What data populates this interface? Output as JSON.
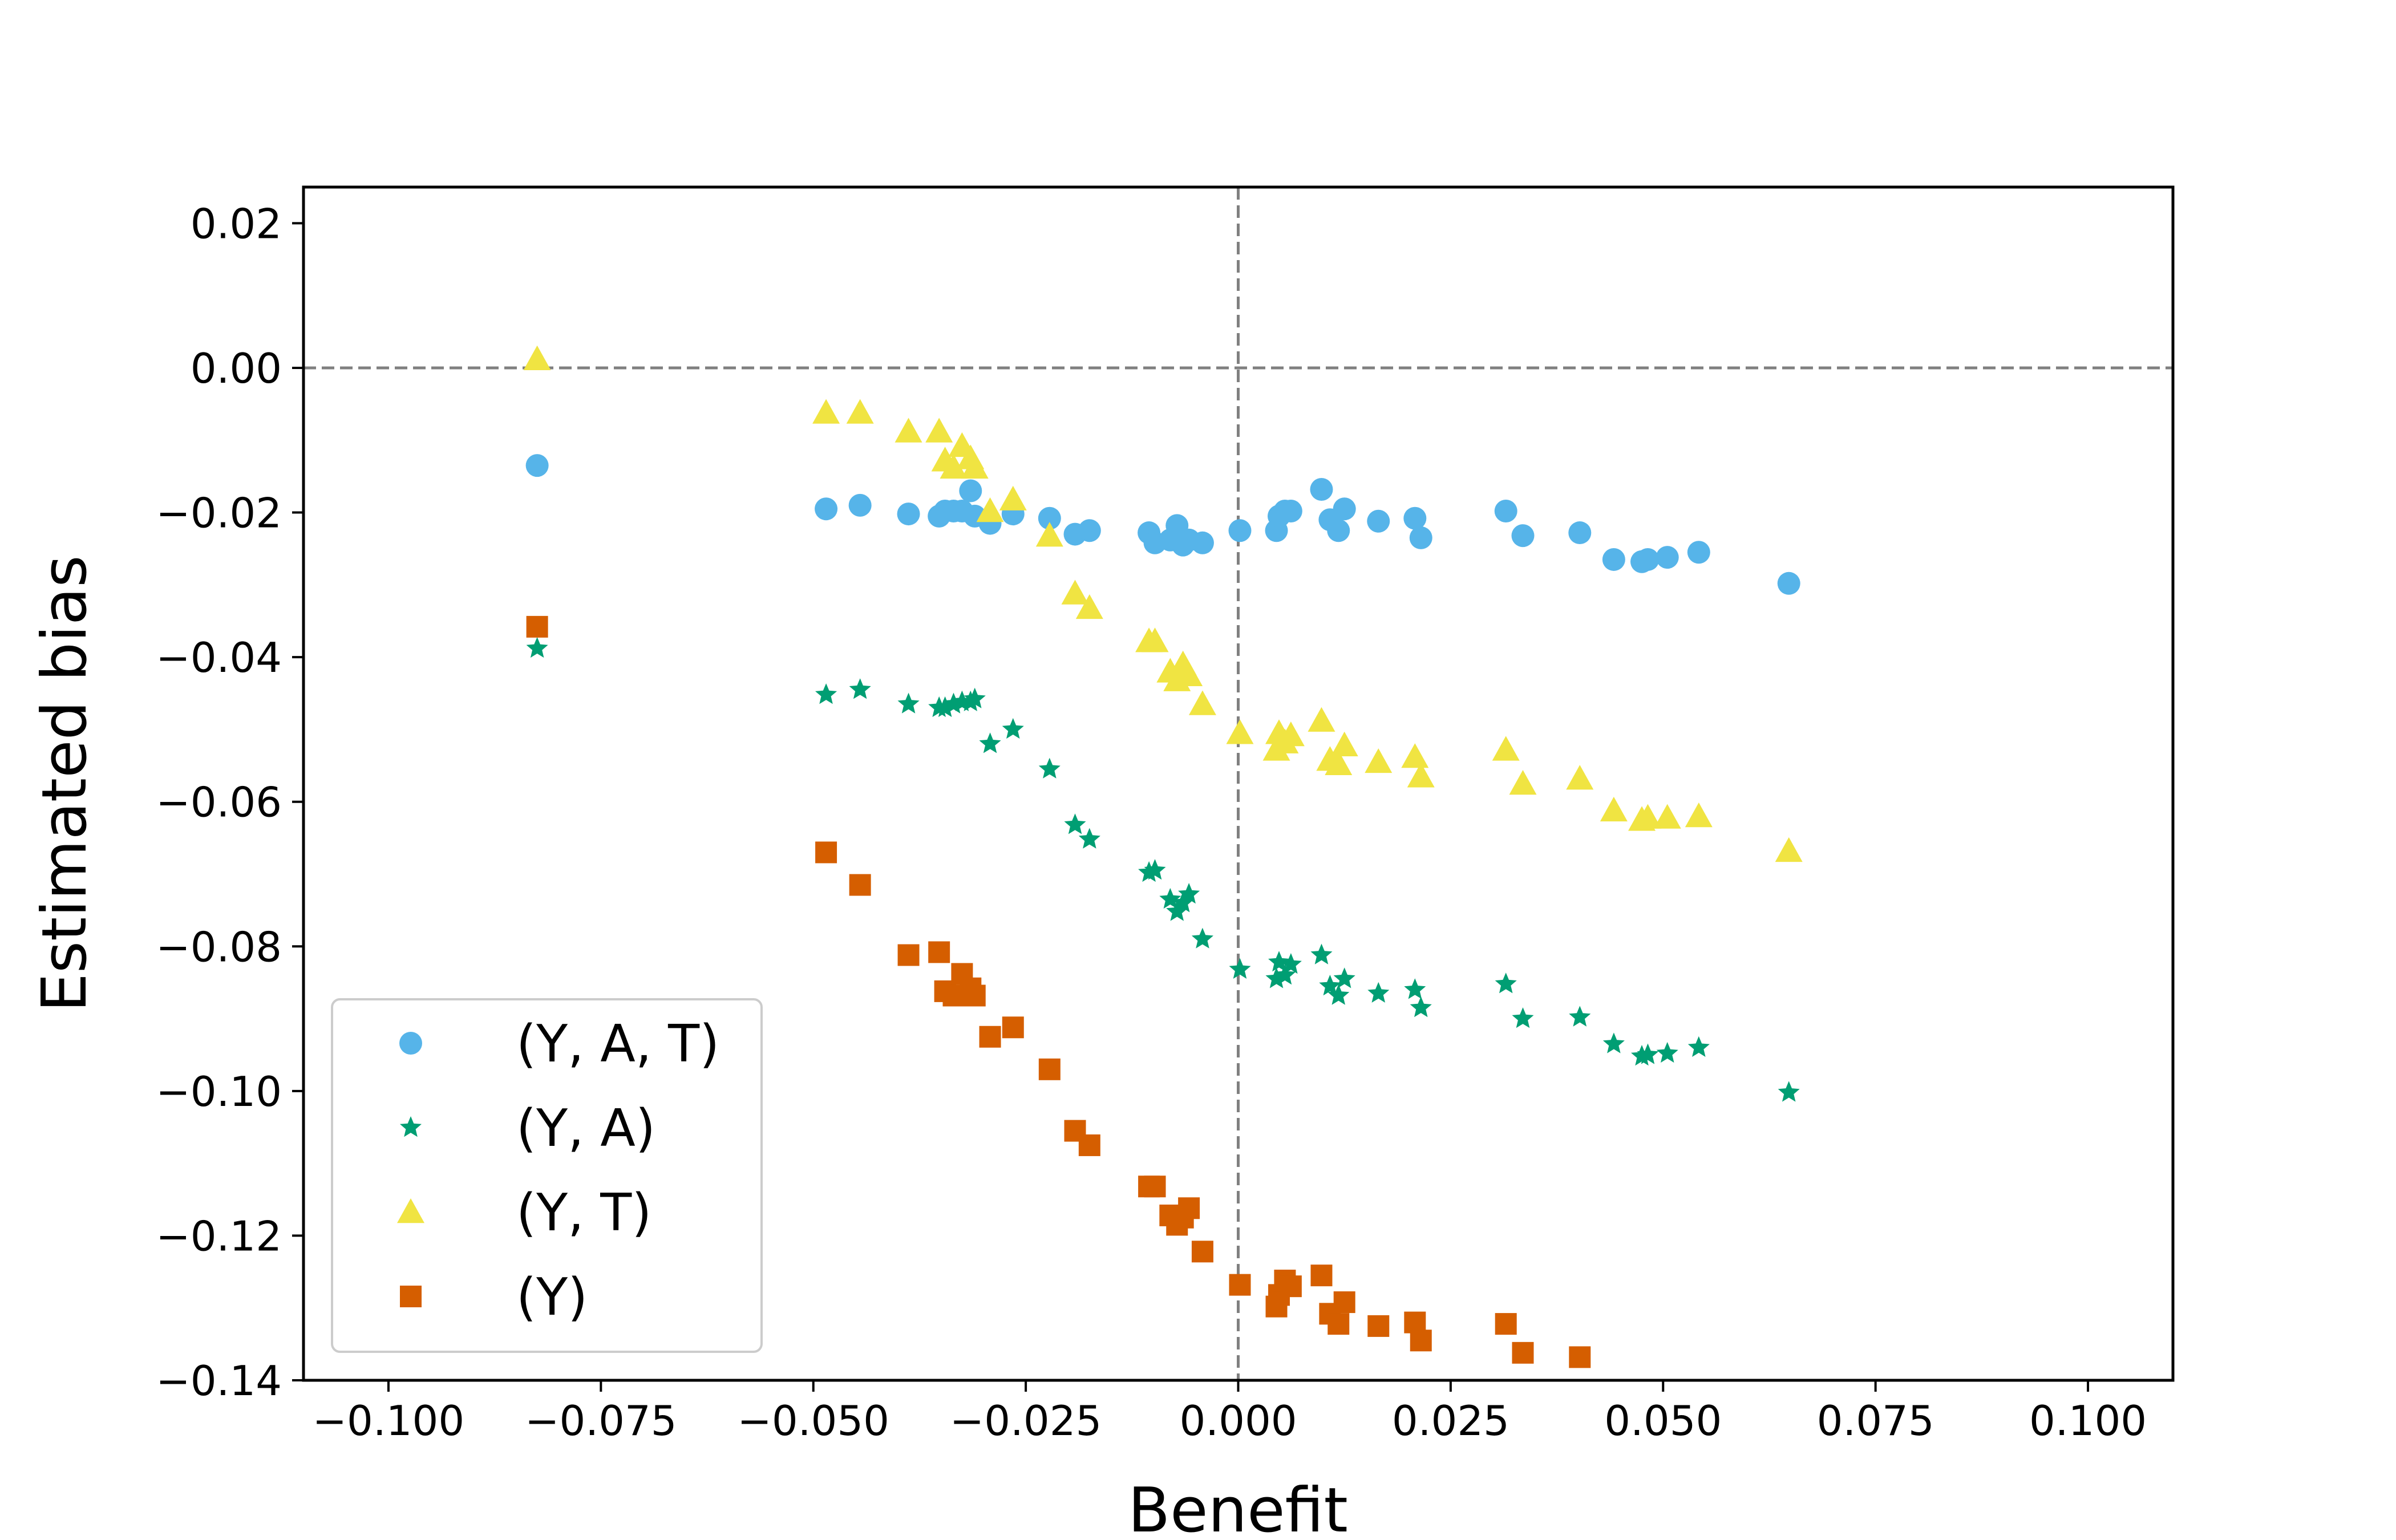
{
  "chart_data": {
    "type": "scatter",
    "title": "",
    "xlabel": "Benefit",
    "ylabel": "Estimated bias",
    "xlim": [
      -0.11,
      0.11
    ],
    "ylim": [
      -0.14,
      0.025
    ],
    "xticks": [
      -0.1,
      -0.075,
      -0.05,
      -0.025,
      0.0,
      0.025,
      0.05,
      0.075,
      0.1
    ],
    "xtick_labels": [
      "−0.100",
      "−0.075",
      "−0.050",
      "−0.025",
      "0.000",
      "0.025",
      "0.050",
      "0.075",
      "0.100"
    ],
    "yticks": [
      0.02,
      0.0,
      -0.02,
      -0.04,
      -0.06,
      -0.08,
      -0.1,
      -0.12,
      -0.14
    ],
    "ytick_labels": [
      "0.02",
      "0.00",
      "−0.02",
      "−0.04",
      "−0.06",
      "−0.08",
      "−0.10",
      "−0.12",
      "−0.14"
    ],
    "reference_lines": {
      "x": 0.0,
      "y": 0.0,
      "style": "dashed",
      "color": "#808080"
    },
    "grid": false,
    "legend_position": "lower-left",
    "x": [
      -0.0825,
      -0.0485,
      -0.0445,
      -0.0388,
      -0.0352,
      -0.0345,
      -0.0335,
      -0.0325,
      -0.0315,
      -0.031,
      -0.0292,
      -0.0265,
      -0.0222,
      -0.0192,
      -0.0175,
      -0.0105,
      -0.0098,
      -0.008,
      -0.0072,
      -0.0065,
      -0.0058,
      -0.0042,
      0.0002,
      0.0045,
      0.0048,
      0.0055,
      0.0062,
      0.0098,
      0.0108,
      0.0118,
      0.0125,
      0.0165,
      0.0208,
      0.0215,
      0.0315,
      0.0335,
      0.0402,
      0.0442,
      0.0475,
      0.0482,
      0.0505,
      0.0542,
      0.0648
    ],
    "series": [
      {
        "name": "(Y, A, T)",
        "marker": "circle",
        "color": "#56B4E9",
        "values": [
          -0.0135,
          -0.0195,
          -0.019,
          -0.0202,
          -0.0205,
          -0.0198,
          -0.0198,
          -0.0198,
          -0.017,
          -0.0205,
          -0.0215,
          -0.0202,
          -0.0208,
          -0.023,
          -0.0225,
          -0.0228,
          -0.0242,
          -0.0238,
          -0.0218,
          -0.0245,
          -0.0238,
          -0.0242,
          -0.0225,
          -0.0225,
          -0.0205,
          -0.0198,
          -0.0198,
          -0.0168,
          -0.021,
          -0.0225,
          -0.0195,
          -0.0212,
          -0.0208,
          -0.0235,
          -0.0198,
          -0.0232,
          -0.0228,
          -0.0265,
          -0.0268,
          -0.0265,
          -0.0262,
          -0.0255,
          -0.0298
        ]
      },
      {
        "name": "(Y, A)",
        "marker": "star",
        "color": "#009E73",
        "values": [
          -0.0388,
          -0.0452,
          -0.0445,
          -0.0465,
          -0.047,
          -0.047,
          -0.0465,
          -0.0462,
          -0.0462,
          -0.0458,
          -0.052,
          -0.05,
          -0.0555,
          -0.0632,
          -0.0652,
          -0.0698,
          -0.0695,
          -0.0735,
          -0.0752,
          -0.074,
          -0.0728,
          -0.079,
          -0.0832,
          -0.0845,
          -0.0822,
          -0.084,
          -0.0825,
          -0.0812,
          -0.0855,
          -0.0868,
          -0.0845,
          -0.0865,
          -0.086,
          -0.0885,
          -0.0852,
          -0.09,
          -0.0898,
          -0.0935,
          -0.0952,
          -0.095,
          -0.0948,
          -0.094,
          -0.1002
        ]
      },
      {
        "name": "(Y, T)",
        "marker": "triangle",
        "color": "#F0E442",
        "values": [
          0.0012,
          -0.0062,
          -0.0062,
          -0.0088,
          -0.0088,
          -0.0128,
          -0.0138,
          -0.0108,
          -0.0125,
          -0.0138,
          -0.0198,
          -0.0182,
          -0.0232,
          -0.0312,
          -0.0332,
          -0.0378,
          -0.0378,
          -0.042,
          -0.0432,
          -0.041,
          -0.0425,
          -0.0465,
          -0.0505,
          -0.0528,
          -0.0505,
          -0.0518,
          -0.0508,
          -0.0488,
          -0.0542,
          -0.0548,
          -0.0522,
          -0.0545,
          -0.0538,
          -0.0565,
          -0.0528,
          -0.0575,
          -0.0568,
          -0.0612,
          -0.0625,
          -0.0622,
          -0.0622,
          -0.062,
          -0.0668
        ]
      },
      {
        "name": "(Y)",
        "marker": "square",
        "color": "#D55E00",
        "values": [
          -0.0358,
          -0.067,
          -0.0715,
          -0.0812,
          -0.0808,
          -0.0862,
          -0.0868,
          -0.0838,
          -0.0858,
          -0.0868,
          -0.0925,
          -0.0912,
          -0.097,
          -0.1055,
          -0.1075,
          -0.1132,
          -0.1132,
          -0.1172,
          -0.1185,
          -0.1175,
          -0.1162,
          -0.1222,
          -0.1268,
          -0.1298,
          -0.1282,
          -0.1262,
          -0.127,
          -0.1255,
          -0.1308,
          -0.1322,
          -0.1292,
          -0.1325,
          -0.132,
          -0.1345,
          -0.1322,
          -0.1362,
          -0.1368,
          null,
          null,
          null,
          null,
          null,
          null
        ]
      }
    ]
  }
}
